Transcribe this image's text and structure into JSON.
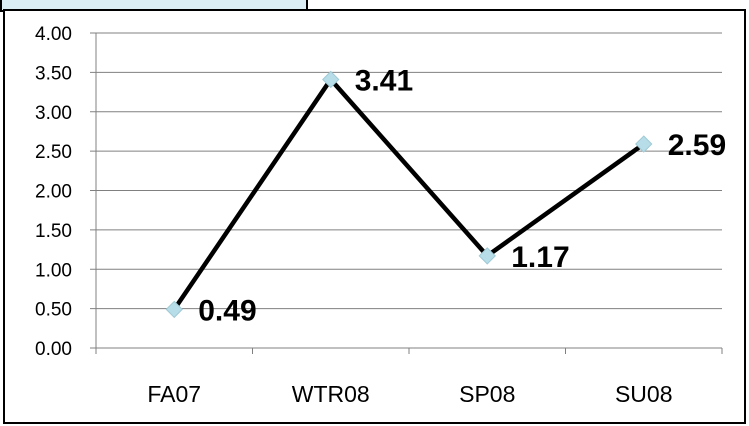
{
  "chart_data": {
    "type": "line",
    "categories": [
      "FA07",
      "WTR08",
      "SP08",
      "SU08"
    ],
    "series": [
      {
        "values": [
          0.49,
          3.41,
          1.17,
          2.59
        ],
        "labels": [
          "0.49",
          "3.41",
          "1.17",
          "2.59"
        ]
      }
    ],
    "ylim": [
      0,
      4
    ],
    "yticks": [
      "0.00",
      "0.50",
      "1.00",
      "1.50",
      "2.00",
      "2.50",
      "3.00",
      "3.50",
      "4.00"
    ],
    "grid": true,
    "title": "",
    "xlabel": "",
    "ylabel": "",
    "colors": {
      "line": "#000000",
      "marker": "#b7dde8",
      "grid": "#808080",
      "title_box": "#dbeef3"
    }
  }
}
